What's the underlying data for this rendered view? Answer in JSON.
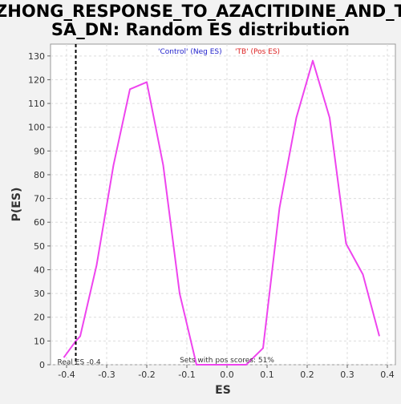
{
  "chart_data": {
    "type": "line",
    "title_lines": [
      "ZHONG_RESPONSE_TO_AZACITIDINE_AND_T",
      "SA_DN: Random ES distribution"
    ],
    "xlabel": "ES",
    "ylabel": "P(ES)",
    "xlim": [
      -0.44,
      0.42
    ],
    "ylim": [
      0,
      135
    ],
    "xticks": [
      -0.4,
      -0.3,
      -0.2,
      -0.1,
      0.0,
      0.1,
      0.2,
      0.3,
      0.4
    ],
    "xtick_labels": [
      "-0.4",
      "-0.3",
      "-0.2",
      "-0.1",
      "0.0",
      "0.1",
      "0.2",
      "0.3",
      "0.4"
    ],
    "yticks": [
      0,
      10,
      20,
      30,
      40,
      50,
      60,
      70,
      80,
      90,
      100,
      110,
      120,
      130
    ],
    "ytick_labels": [
      "0",
      "10",
      "20",
      "30",
      "40",
      "50",
      "60",
      "70",
      "80",
      "90",
      "100",
      "110",
      "120",
      "130"
    ],
    "grid": true,
    "series": [
      {
        "color": "#ee44ee",
        "x": [
          -0.407,
          -0.377,
          -0.366,
          -0.325,
          -0.283,
          -0.242,
          -0.2,
          -0.159,
          -0.118,
          -0.076,
          -0.035,
          0.007,
          0.048,
          0.09,
          0.131,
          0.173,
          0.214,
          0.256,
          0.297,
          0.339,
          0.38
        ],
        "y": [
          3,
          10,
          12,
          42,
          84,
          116,
          119,
          84,
          30,
          0,
          0,
          0,
          0,
          7,
          66,
          104,
          128,
          104,
          51,
          38,
          12
        ]
      }
    ],
    "real_es": -0.377,
    "legend": [
      {
        "text": "'Control' (Neg ES)",
        "color": "#2222cc"
      },
      {
        "text": "'TB' (Pos ES)",
        "color": "#dd2222"
      }
    ],
    "annotations": {
      "real_es_label": "Real ES -0.4",
      "pos_scores_label": "Sets with pos scores: 51%"
    }
  }
}
